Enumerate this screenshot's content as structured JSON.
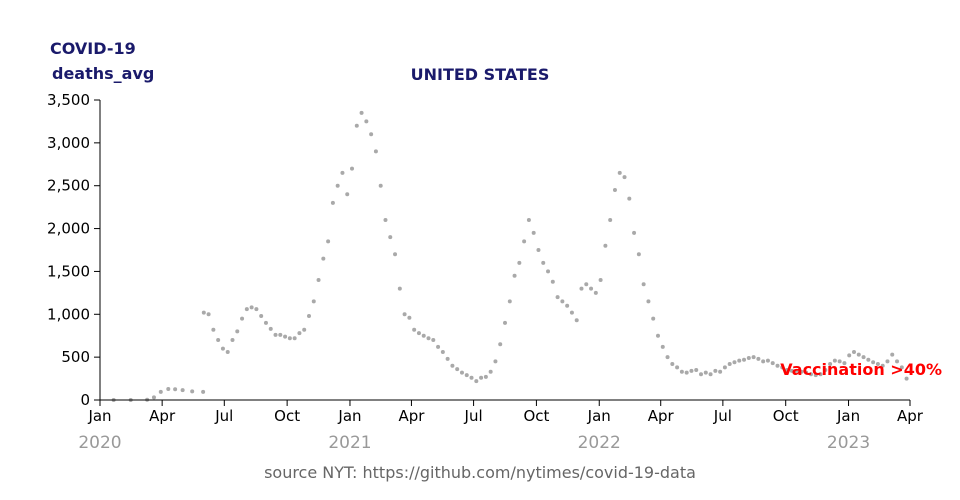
{
  "chart_data": {
    "type": "scatter",
    "title": "UNITED STATES",
    "ylabel": "COVID-19",
    "ylabel2": "deaths_avg",
    "ylim": [
      0,
      3500
    ],
    "yticks": [
      0,
      500,
      1000,
      1500,
      2000,
      2500,
      3000,
      3500
    ],
    "ytick_labels": [
      "0",
      "500",
      "1,000",
      "1,500",
      "2,000",
      "2,500",
      "3,000",
      "3,500"
    ],
    "xlim": [
      "2020-01-01",
      "2023-04-01"
    ],
    "xticks": [
      {
        "date": "2020-01-01",
        "label": "Jan"
      },
      {
        "date": "2020-04-01",
        "label": "Apr"
      },
      {
        "date": "2020-07-01",
        "label": "Jul"
      },
      {
        "date": "2020-10-01",
        "label": "Oct"
      },
      {
        "date": "2021-01-01",
        "label": "Jan"
      },
      {
        "date": "2021-04-01",
        "label": "Apr"
      },
      {
        "date": "2021-07-01",
        "label": "Jul"
      },
      {
        "date": "2021-10-01",
        "label": "Oct"
      },
      {
        "date": "2022-01-01",
        "label": "Jan"
      },
      {
        "date": "2022-04-01",
        "label": "Apr"
      },
      {
        "date": "2022-07-01",
        "label": "Jul"
      },
      {
        "date": "2022-10-01",
        "label": "Oct"
      },
      {
        "date": "2023-01-01",
        "label": "Jan"
      },
      {
        "date": "2023-04-01",
        "label": "Apr"
      }
    ],
    "year_labels": [
      {
        "date": "2020-01-01",
        "label": "2020"
      },
      {
        "date": "2021-01-01",
        "label": "2021"
      },
      {
        "date": "2022-01-01",
        "label": "2022"
      },
      {
        "date": "2023-01-01",
        "label": "2023"
      }
    ],
    "annotation": {
      "text": "Vaccination >40%"
    },
    "source": "source NYT: https://github.com/nytimes/covid-19-data",
    "point_color": "#a9a9a9",
    "annotation_color": "#ff0000",
    "title_color": "#1a1a6b",
    "series": [
      {
        "points": [
          [
            "2020-01-21",
            0
          ],
          [
            "2020-02-15",
            0
          ],
          [
            "2020-03-10",
            3
          ],
          [
            "2020-03-20",
            30
          ],
          [
            "2020-03-30",
            95
          ],
          [
            "2020-04-10",
            128
          ],
          [
            "2020-04-20",
            126
          ],
          [
            "2020-05-01",
            115
          ],
          [
            "2020-05-15",
            100
          ],
          [
            "2020-05-31",
            95
          ],
          [
            "2020-06-01",
            1020
          ],
          [
            "2020-06-08",
            1000
          ],
          [
            "2020-06-15",
            820
          ],
          [
            "2020-06-22",
            700
          ],
          [
            "2020-06-29",
            600
          ],
          [
            "2020-07-06",
            560
          ],
          [
            "2020-07-13",
            700
          ],
          [
            "2020-07-20",
            800
          ],
          [
            "2020-07-27",
            950
          ],
          [
            "2020-08-03",
            1060
          ],
          [
            "2020-08-10",
            1080
          ],
          [
            "2020-08-17",
            1060
          ],
          [
            "2020-08-24",
            980
          ],
          [
            "2020-08-31",
            900
          ],
          [
            "2020-09-07",
            830
          ],
          [
            "2020-09-14",
            760
          ],
          [
            "2020-09-21",
            760
          ],
          [
            "2020-09-28",
            740
          ],
          [
            "2020-10-05",
            720
          ],
          [
            "2020-10-12",
            720
          ],
          [
            "2020-10-19",
            780
          ],
          [
            "2020-10-26",
            820
          ],
          [
            "2020-11-02",
            980
          ],
          [
            "2020-11-09",
            1150
          ],
          [
            "2020-11-16",
            1400
          ],
          [
            "2020-11-23",
            1650
          ],
          [
            "2020-11-30",
            1850
          ],
          [
            "2020-12-07",
            2300
          ],
          [
            "2020-12-14",
            2500
          ],
          [
            "2020-12-21",
            2650
          ],
          [
            "2020-12-28",
            2400
          ],
          [
            "2021-01-04",
            2700
          ],
          [
            "2021-01-11",
            3200
          ],
          [
            "2021-01-18",
            3350
          ],
          [
            "2021-01-25",
            3250
          ],
          [
            "2021-02-01",
            3100
          ],
          [
            "2021-02-08",
            2900
          ],
          [
            "2021-02-15",
            2500
          ],
          [
            "2021-02-22",
            2100
          ],
          [
            "2021-03-01",
            1900
          ],
          [
            "2021-03-08",
            1700
          ],
          [
            "2021-03-15",
            1300
          ],
          [
            "2021-03-22",
            1000
          ],
          [
            "2021-03-29",
            960
          ],
          [
            "2021-04-05",
            820
          ],
          [
            "2021-04-12",
            780
          ],
          [
            "2021-04-19",
            750
          ],
          [
            "2021-04-26",
            720
          ],
          [
            "2021-05-03",
            700
          ],
          [
            "2021-05-10",
            620
          ],
          [
            "2021-05-17",
            560
          ],
          [
            "2021-05-24",
            480
          ],
          [
            "2021-05-31",
            400
          ],
          [
            "2021-06-07",
            360
          ],
          [
            "2021-06-14",
            320
          ],
          [
            "2021-06-21",
            290
          ],
          [
            "2021-06-28",
            260
          ],
          [
            "2021-07-05",
            220
          ],
          [
            "2021-07-12",
            260
          ],
          [
            "2021-07-19",
            270
          ],
          [
            "2021-07-26",
            330
          ],
          [
            "2021-08-02",
            450
          ],
          [
            "2021-08-09",
            650
          ],
          [
            "2021-08-16",
            900
          ],
          [
            "2021-08-23",
            1150
          ],
          [
            "2021-08-30",
            1450
          ],
          [
            "2021-09-06",
            1600
          ],
          [
            "2021-09-13",
            1850
          ],
          [
            "2021-09-20",
            2100
          ],
          [
            "2021-09-27",
            1950
          ],
          [
            "2021-10-04",
            1750
          ],
          [
            "2021-10-11",
            1600
          ],
          [
            "2021-10-18",
            1500
          ],
          [
            "2021-10-25",
            1380
          ],
          [
            "2021-11-01",
            1200
          ],
          [
            "2021-11-08",
            1150
          ],
          [
            "2021-11-15",
            1100
          ],
          [
            "2021-11-22",
            1020
          ],
          [
            "2021-11-29",
            930
          ],
          [
            "2021-12-06",
            1300
          ],
          [
            "2021-12-13",
            1350
          ],
          [
            "2021-12-20",
            1300
          ],
          [
            "2021-12-27",
            1250
          ],
          [
            "2022-01-03",
            1400
          ],
          [
            "2022-01-10",
            1800
          ],
          [
            "2022-01-17",
            2100
          ],
          [
            "2022-01-24",
            2450
          ],
          [
            "2022-01-31",
            2650
          ],
          [
            "2022-02-07",
            2600
          ],
          [
            "2022-02-14",
            2350
          ],
          [
            "2022-02-21",
            1950
          ],
          [
            "2022-02-28",
            1700
          ],
          [
            "2022-03-07",
            1350
          ],
          [
            "2022-03-14",
            1150
          ],
          [
            "2022-03-21",
            950
          ],
          [
            "2022-03-28",
            750
          ],
          [
            "2022-04-04",
            620
          ],
          [
            "2022-04-11",
            500
          ],
          [
            "2022-04-18",
            420
          ],
          [
            "2022-04-25",
            380
          ],
          [
            "2022-05-02",
            330
          ],
          [
            "2022-05-09",
            320
          ],
          [
            "2022-05-16",
            340
          ],
          [
            "2022-05-23",
            350
          ],
          [
            "2022-05-30",
            300
          ],
          [
            "2022-06-06",
            320
          ],
          [
            "2022-06-13",
            300
          ],
          [
            "2022-06-20",
            340
          ],
          [
            "2022-06-27",
            330
          ],
          [
            "2022-07-04",
            380
          ],
          [
            "2022-07-11",
            420
          ],
          [
            "2022-07-18",
            440
          ],
          [
            "2022-07-25",
            460
          ],
          [
            "2022-08-01",
            470
          ],
          [
            "2022-08-08",
            490
          ],
          [
            "2022-08-15",
            500
          ],
          [
            "2022-08-22",
            480
          ],
          [
            "2022-08-29",
            450
          ],
          [
            "2022-09-05",
            460
          ],
          [
            "2022-09-12",
            430
          ],
          [
            "2022-09-19",
            400
          ],
          [
            "2022-09-26",
            380
          ],
          [
            "2022-10-03",
            350
          ],
          [
            "2022-10-10",
            340
          ],
          [
            "2022-10-17",
            340
          ],
          [
            "2022-10-24",
            330
          ],
          [
            "2022-10-31",
            320
          ],
          [
            "2022-11-07",
            300
          ],
          [
            "2022-11-14",
            290
          ],
          [
            "2022-11-21",
            300
          ],
          [
            "2022-11-28",
            350
          ],
          [
            "2022-12-05",
            420
          ],
          [
            "2022-12-12",
            460
          ],
          [
            "2022-12-19",
            450
          ],
          [
            "2022-12-26",
            430
          ],
          [
            "2023-01-02",
            520
          ],
          [
            "2023-01-09",
            560
          ],
          [
            "2023-01-16",
            530
          ],
          [
            "2023-01-23",
            500
          ],
          [
            "2023-01-30",
            470
          ],
          [
            "2023-02-06",
            440
          ],
          [
            "2023-02-13",
            420
          ],
          [
            "2023-02-20",
            400
          ],
          [
            "2023-02-27",
            450
          ],
          [
            "2023-03-06",
            530
          ],
          [
            "2023-03-13",
            450
          ],
          [
            "2023-03-20",
            380
          ],
          [
            "2023-03-27",
            250
          ]
        ]
      }
    ]
  }
}
